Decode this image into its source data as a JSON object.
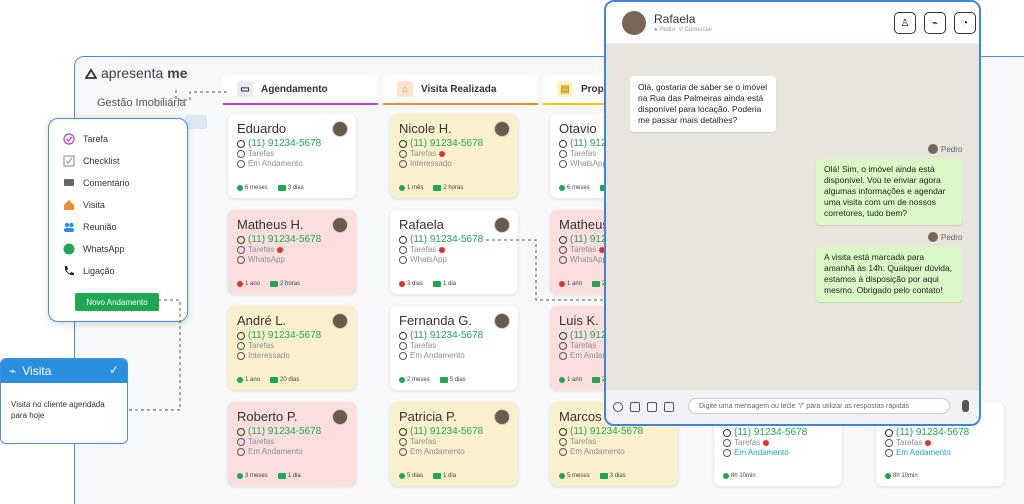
{
  "app": {
    "logo_text_a": "apresenta",
    "logo_text_b": "me",
    "sidebar_title": "Gestão Imobiliária"
  },
  "columns": [
    {
      "title": "Agendamento",
      "color": "#c33bd6"
    },
    {
      "title": "Visita Realizada",
      "color": "#f08c2b"
    },
    {
      "title": "Prop",
      "color": "#f0c40f"
    }
  ],
  "cards": {
    "col1": [
      {
        "name": "Eduardo",
        "phone": "(11) 91234-5678",
        "line1": "Tarefas",
        "line2": "Em Andamento",
        "f1": "6 meses",
        "f2": "3 dias"
      },
      {
        "name": "Matheus H.",
        "phone": "(11) 91234-5678",
        "line1": "Tarefas",
        "line2": "WhatsApp",
        "f1": "1 ano",
        "f2": "2 horas"
      },
      {
        "name": "André L.",
        "phone": "(11) 91234-5678",
        "line1": "Tarefas",
        "line2": "Interessado",
        "f1": "1 ano",
        "f2": "20 dias"
      },
      {
        "name": "Roberto P.",
        "phone": "(11) 91234-5678",
        "line1": "Tarefas",
        "line2": "Em Andamento",
        "f1": "3 meses",
        "f2": "1 dia"
      }
    ],
    "col2": [
      {
        "name": "Nicole H.",
        "phone": "(11) 91234-5678",
        "line1": "Tarefas",
        "line2": "Interessado",
        "f1": "1 mês",
        "f2": "2 horas"
      },
      {
        "name": "Rafaela",
        "phone": "(11) 91234-5678",
        "line1": "Tarefas",
        "line2": "WhatsApp",
        "f1": "3 dias",
        "f2": "1 dia"
      },
      {
        "name": "Fernanda G.",
        "phone": "(11) 91234-5678",
        "line1": "Tarefas",
        "line2": "Em Andamento",
        "f1": "2 meses",
        "f2": "5 dias"
      },
      {
        "name": "Patricia P.",
        "phone": "(11) 91234-5678",
        "line1": "Tarefas",
        "line2": "Em Andamento",
        "f1": "5 dias",
        "f2": "1 dia"
      }
    ],
    "col3": [
      {
        "name": "Otavio",
        "phone": "(11) 91234-5678",
        "line1": "Tarefas",
        "line2": "WhatsApp",
        "f1": "6 meses",
        "f2": "3 dias"
      },
      {
        "name": "Matheus",
        "phone": "(11) 91234-5678",
        "line1": "Tarefas",
        "line2": "WhatsApp",
        "f1": "1 ano",
        "f2": "2 horas"
      },
      {
        "name": "Luis K.",
        "phone": "(11) 91234-5678",
        "line1": "Tarefas",
        "line2": "Em Andamento",
        "f1": "1 ano",
        "f2": "20 dias"
      },
      {
        "name": "Marcos",
        "phone": "(11) 91234-5678",
        "line1": "Tarefas",
        "line2": "Em Andamento",
        "f1": "5 meses",
        "f2": "3 dias"
      }
    ],
    "col4": [
      {
        "phone": "(11) 91234-5678",
        "line1": "Tarefas",
        "line2": "Em Andamento",
        "f1": "8h 10min"
      },
      {
        "phone": "(11) 91234-5678",
        "line1": "Tarefas",
        "line2": "Em Andamento",
        "f1": "8h 10min"
      }
    ]
  },
  "menu": {
    "items": [
      "Tarefa",
      "Checklist",
      "Comentário",
      "Visita",
      "Reunião",
      "WhatsApp",
      "Ligação"
    ],
    "button": "Novo Andamento"
  },
  "visita": {
    "title": "Visita",
    "body": "Visita no cliente agendada para hoje"
  },
  "chat": {
    "name": "Rafaela",
    "meta_user": "Pedro",
    "meta_dept": "Comercial",
    "msg_in": "Olá, gostaria de saber se o imóvel na Rua das Palmeiras ainda está disponível para locação. Poderia me passar mais detalhes?",
    "sender1": "Pedro",
    "msg_out1": "Olá!  Sim, o imóvel ainda está disponível. Vou te enviar agora algumas informações e agendar uma visita com um de nossos corretores, tudo bem?",
    "sender2": "Pedro",
    "msg_out2": "A visita está marcada para amanhã às 14h. Qualquer dúvida, estamos à disposição por aqui mesmo. Obrigado pelo contato!",
    "input_placeholder": "Digite uma mensagem ou tecle \"/\" para utilizar as respostas rápidas"
  }
}
